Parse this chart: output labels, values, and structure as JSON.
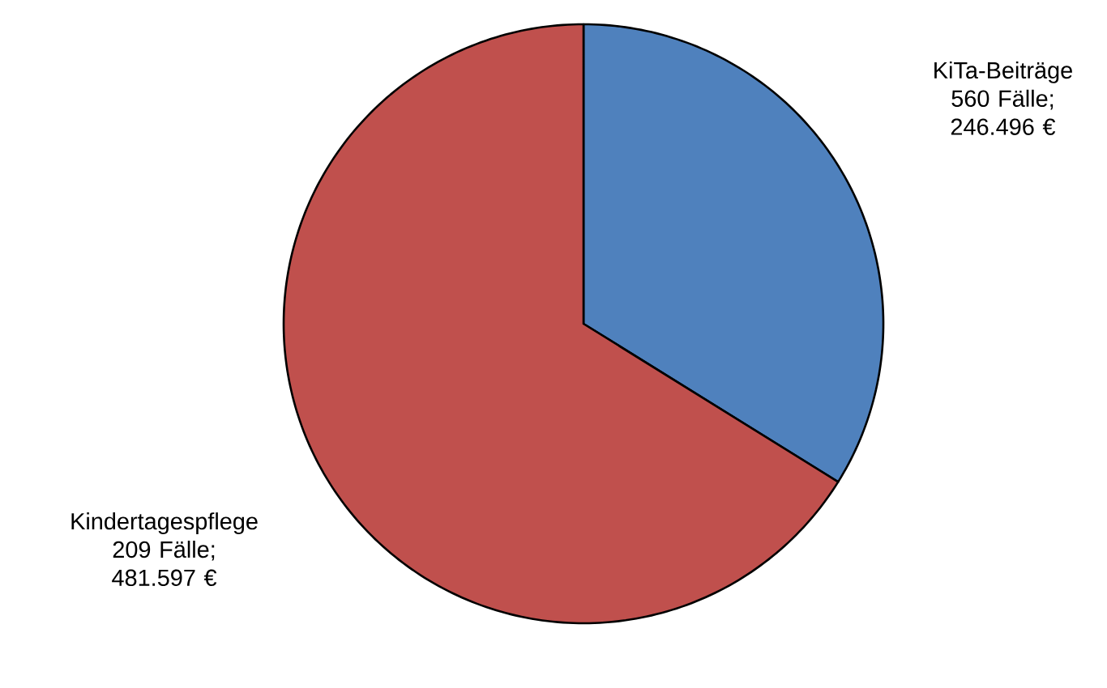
{
  "chart_data": {
    "type": "pie",
    "categories": [
      "KiTa-Beiträge",
      "Kindertagespflege"
    ],
    "values": [
      246496,
      481597
    ],
    "colors": [
      "#4f81bd",
      "#c0504d"
    ],
    "value_labels": [
      "560 Fälle; 246.496 €",
      "209 Fälle; 481.597 €"
    ]
  }
}
